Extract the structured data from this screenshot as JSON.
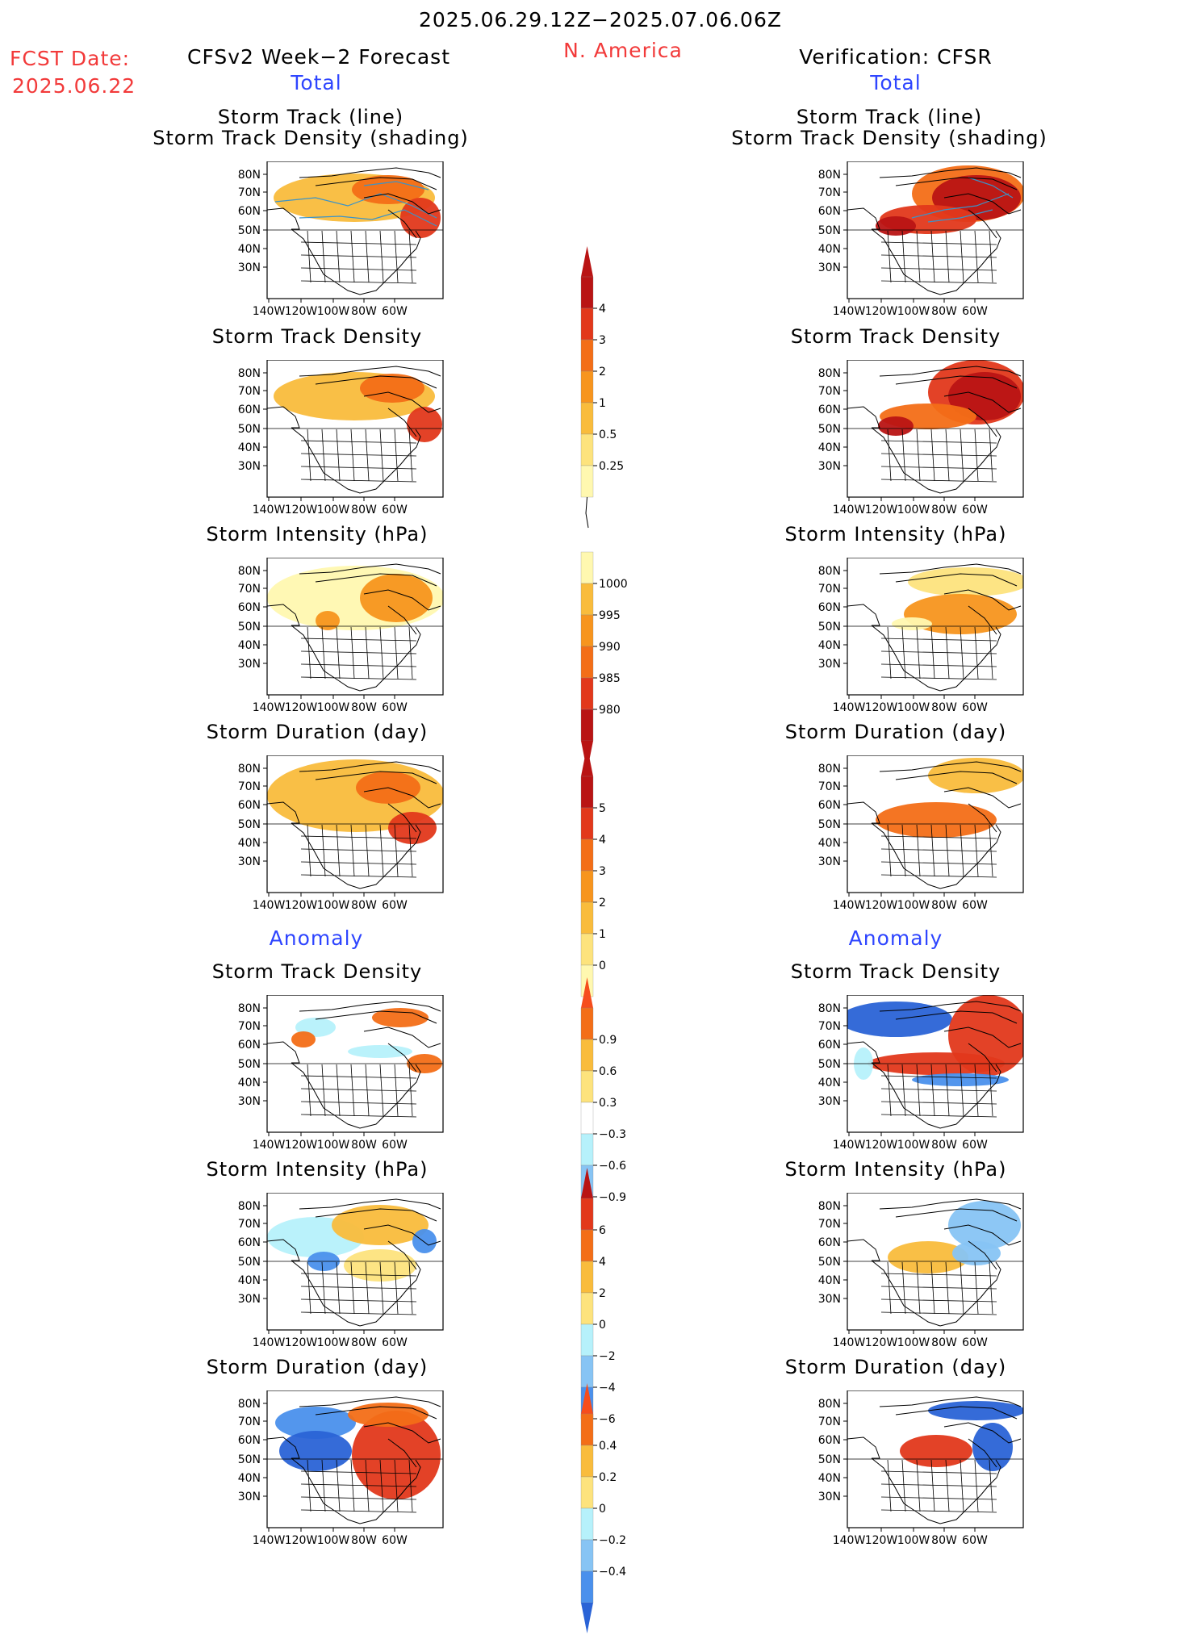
{
  "header": {
    "date_range": "2025.06.29.12Z−2025.07.06.06Z",
    "region": "N. America",
    "fcst_label": "FCST Date:",
    "fcst_date": "2025.06.22",
    "left_title": "CFSv2 Week−2 Forecast",
    "right_title": "Verification: CFSR"
  },
  "sections": {
    "total": "Total",
    "anomaly": "Anomaly"
  },
  "panel_titles": {
    "track_line_1": "Storm Track (line)",
    "track_line_2": "Storm Track Density (shading)",
    "density": "Storm Track Density",
    "intensity": "Storm Intensity (hPa)",
    "duration": "Storm Duration (day)"
  },
  "axes": {
    "lat_labels": [
      "80N",
      "70N",
      "60N",
      "50N",
      "40N",
      "30N"
    ],
    "lon_labels": [
      "140W",
      "120W",
      "100W",
      "80W",
      "60W"
    ]
  },
  "colorbars": {
    "total_density": [
      "4",
      "3",
      "2",
      "1",
      "0.5",
      "0.25"
    ],
    "total_intensity": [
      "1000",
      "995",
      "990",
      "985",
      "980"
    ],
    "total_duration": [
      "5",
      "4",
      "3",
      "2",
      "1",
      "0"
    ],
    "anom_density": [
      "0.9",
      "0.6",
      "0.3",
      "−0.3",
      "−0.6",
      "−0.9"
    ],
    "anom_intensity": [
      "6",
      "4",
      "2",
      "0",
      "−2",
      "−4",
      "−6"
    ],
    "anom_duration": [
      "0.4",
      "0.2",
      "0",
      "−0.2",
      "−0.4"
    ]
  },
  "colors": {
    "title_red": "#f23a3a",
    "title_blue": "#2e45ff",
    "warm": [
      "#fff8b0",
      "#fde37d",
      "#f9bc3c",
      "#f7951e",
      "#f36e17",
      "#e2381b",
      "#b91414"
    ],
    "cool": [
      "#b6f1fb",
      "#87c4f4",
      "#4a90ec",
      "#2a63d6",
      "#1b44b0"
    ],
    "track_line": "#3a93c9"
  }
}
